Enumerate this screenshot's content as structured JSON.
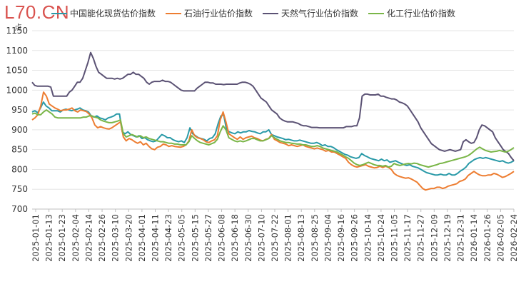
{
  "watermark": "L70.CN",
  "chart_data": {
    "type": "line",
    "unit": "点",
    "ylim": [
      700,
      1150
    ],
    "yticks": [
      700,
      750,
      800,
      850,
      900,
      950,
      1000,
      1050,
      1100,
      1150
    ],
    "xlabels": [
      "2025-01-01",
      "2025-01-13",
      "2025-01-23",
      "2025-02-04",
      "2025-02-14",
      "2025-02-26",
      "2025-03-10",
      "2025-03-20",
      "2025-04-01",
      "2025-04-11",
      "2025-04-23",
      "2025-05-05",
      "2025-05-15",
      "2025-05-27",
      "2025-06-08",
      "2025-06-18",
      "2025-06-30",
      "2025-07-10",
      "2025-07-22",
      "2025-08-01",
      "2025-08-13",
      "2025-08-25",
      "2025-09-04",
      "2025-09-16",
      "2025-09-26",
      "2025-10-14",
      "2025-10-24",
      "2025-11-05",
      "2025-11-17",
      "2025-11-27",
      "2025-12-09",
      "2025-12-19",
      "2025-12-31",
      "2026-01-14",
      "2026-01-26",
      "2026-02-05",
      "2026-02-24"
    ],
    "grid": true,
    "legend_position": "top",
    "series": [
      {
        "name": "中国能化现货估价指数",
        "color": "#2a9aa8",
        "values": [
          945,
          948,
          943,
          955,
          970,
          960,
          955,
          948,
          948,
          948,
          945,
          950,
          952,
          950,
          948,
          950,
          952,
          955,
          950,
          948,
          945,
          935,
          932,
          935,
          930,
          928,
          925,
          930,
          932,
          935,
          940,
          940,
          895,
          890,
          895,
          888,
          885,
          882,
          885,
          878,
          880,
          875,
          872,
          870,
          872,
          880,
          888,
          885,
          880,
          880,
          875,
          872,
          870,
          872,
          868,
          880,
          905,
          890,
          885,
          880,
          878,
          876,
          872,
          878,
          880,
          890,
          915,
          935,
          938,
          900,
          895,
          892,
          890,
          895,
          892,
          895,
          895,
          898,
          896,
          895,
          892,
          890,
          895,
          895,
          900,
          888,
          885,
          882,
          880,
          878,
          875,
          876,
          874,
          872,
          872,
          874,
          872,
          870,
          868,
          866,
          866,
          868,
          865,
          860,
          862,
          858,
          858,
          855,
          850,
          846,
          842,
          838,
          836,
          832,
          830,
          828,
          830,
          840,
          835,
          832,
          828,
          826,
          824,
          822,
          826,
          822,
          824,
          818,
          820,
          822,
          818,
          815,
          812,
          810,
          812,
          808,
          806,
          804,
          800,
          796,
          792,
          790,
          788,
          786,
          786,
          788,
          786,
          786,
          790,
          786,
          786,
          790,
          796,
          800,
          806,
          815,
          820,
          825,
          828,
          830,
          828,
          830,
          828,
          826,
          824,
          822,
          820,
          822,
          818,
          816,
          818,
          822
        ]
      },
      {
        "name": "石油行业估价指数",
        "color": "#ed7d31",
        "values": [
          925,
          930,
          938,
          960,
          995,
          985,
          965,
          960,
          955,
          952,
          948,
          950,
          950,
          952,
          955,
          948,
          945,
          950,
          948,
          946,
          940,
          930,
          912,
          905,
          908,
          905,
          903,
          902,
          905,
          910,
          915,
          920,
          882,
          872,
          878,
          875,
          870,
          866,
          870,
          862,
          866,
          858,
          852,
          850,
          856,
          858,
          864,
          862,
          858,
          860,
          858,
          857,
          856,
          858,
          862,
          872,
          900,
          885,
          880,
          878,
          875,
          870,
          868,
          872,
          875,
          885,
          925,
          945,
          920,
          890,
          885,
          880,
          876,
          882,
          876,
          880,
          882,
          884,
          880,
          878,
          874,
          872,
          876,
          878,
          888,
          876,
          872,
          868,
          866,
          864,
          860,
          862,
          860,
          858,
          860,
          862,
          858,
          856,
          854,
          852,
          854,
          852,
          850,
          846,
          848,
          844,
          844,
          840,
          836,
          832,
          828,
          818,
          812,
          808,
          806,
          808,
          810,
          812,
          808,
          806,
          804,
          805,
          808,
          805,
          808,
          805,
          800,
          790,
          785,
          782,
          780,
          778,
          779,
          776,
          772,
          768,
          760,
          752,
          748,
          750,
          752,
          752,
          755,
          755,
          752,
          754,
          758,
          760,
          762,
          764,
          770,
          772,
          776,
          785,
          790,
          795,
          790,
          786,
          784,
          784,
          786,
          786,
          790,
          788,
          784,
          780,
          782,
          786,
          790,
          795
        ]
      },
      {
        "name": "天然气行业估价指数",
        "color": "#5b5274",
        "values": [
          1020,
          1012,
          1010,
          1010,
          1010,
          1010,
          1010,
          1008,
          985,
          985,
          985,
          985,
          985,
          985,
          995,
          1000,
          1010,
          1020,
          1020,
          1030,
          1050,
          1070,
          1095,
          1080,
          1060,
          1045,
          1040,
          1035,
          1030,
          1030,
          1030,
          1028,
          1030,
          1028,
          1030,
          1035,
          1040,
          1040,
          1045,
          1040,
          1040,
          1035,
          1030,
          1020,
          1015,
          1020,
          1022,
          1022,
          1022,
          1025,
          1022,
          1022,
          1020,
          1015,
          1010,
          1005,
          1000,
          998,
          998,
          998,
          998,
          998,
          1005,
          1010,
          1015,
          1020,
          1020,
          1018,
          1018,
          1015,
          1015,
          1015,
          1014,
          1015,
          1015,
          1015,
          1015,
          1015,
          1018,
          1020,
          1020,
          1018,
          1015,
          1010,
          1000,
          990,
          980,
          975,
          970,
          960,
          950,
          945,
          940,
          930,
          925,
          922,
          920,
          920,
          920,
          918,
          916,
          912,
          910,
          910,
          908,
          906,
          906,
          906,
          905,
          905,
          905,
          905,
          905,
          905,
          905,
          905,
          905,
          905,
          908,
          908,
          908,
          910,
          910,
          930,
          985,
          990,
          990,
          988,
          988,
          988,
          990,
          985,
          985,
          982,
          980,
          978,
          978,
          975,
          970,
          968,
          965,
          960,
          950,
          940,
          930,
          920,
          905,
          895,
          885,
          875,
          865,
          860,
          855,
          850,
          848,
          846,
          848,
          850,
          848,
          846,
          848,
          850,
          870,
          875,
          870,
          866,
          868,
          880,
          900,
          912,
          910,
          905,
          900,
          895,
          880,
          870,
          860,
          850,
          845,
          840,
          830,
          822
        ]
      },
      {
        "name": "化工行业估价指数",
        "color": "#7ab648",
        "values": [
          940,
          942,
          938,
          938,
          945,
          950,
          945,
          940,
          932,
          930,
          930,
          930,
          930,
          930,
          930,
          930,
          930,
          930,
          932,
          932,
          935,
          935,
          932,
          930,
          925,
          922,
          920,
          918,
          918,
          920,
          922,
          925,
          890,
          882,
          885,
          888,
          885,
          882,
          885,
          880,
          882,
          878,
          876,
          874,
          872,
          870,
          870,
          868,
          866,
          866,
          864,
          864,
          862,
          862,
          862,
          870,
          885,
          878,
          872,
          868,
          866,
          864,
          862,
          865,
          868,
          876,
          895,
          910,
          900,
          880,
          876,
          872,
          870,
          872,
          870,
          872,
          875,
          878,
          878,
          875,
          872,
          872,
          875,
          878,
          885,
          880,
          876,
          872,
          870,
          868,
          868,
          866,
          865,
          864,
          864,
          862,
          862,
          860,
          858,
          858,
          860,
          858,
          854,
          852,
          850,
          848,
          846,
          844,
          840,
          836,
          832,
          828,
          822,
          816,
          812,
          810,
          812,
          815,
          818,
          815,
          812,
          810,
          810,
          808,
          810,
          806,
          808,
          815,
          812,
          810,
          812,
          814,
          815,
          814,
          816,
          815,
          812,
          810,
          808,
          806,
          808,
          810,
          812,
          815,
          816,
          818,
          820,
          822,
          824,
          826,
          828,
          830,
          832,
          835,
          840,
          846,
          852,
          856,
          852,
          848,
          846,
          844,
          845,
          846,
          848,
          846,
          844,
          846,
          850,
          855
        ]
      }
    ]
  }
}
